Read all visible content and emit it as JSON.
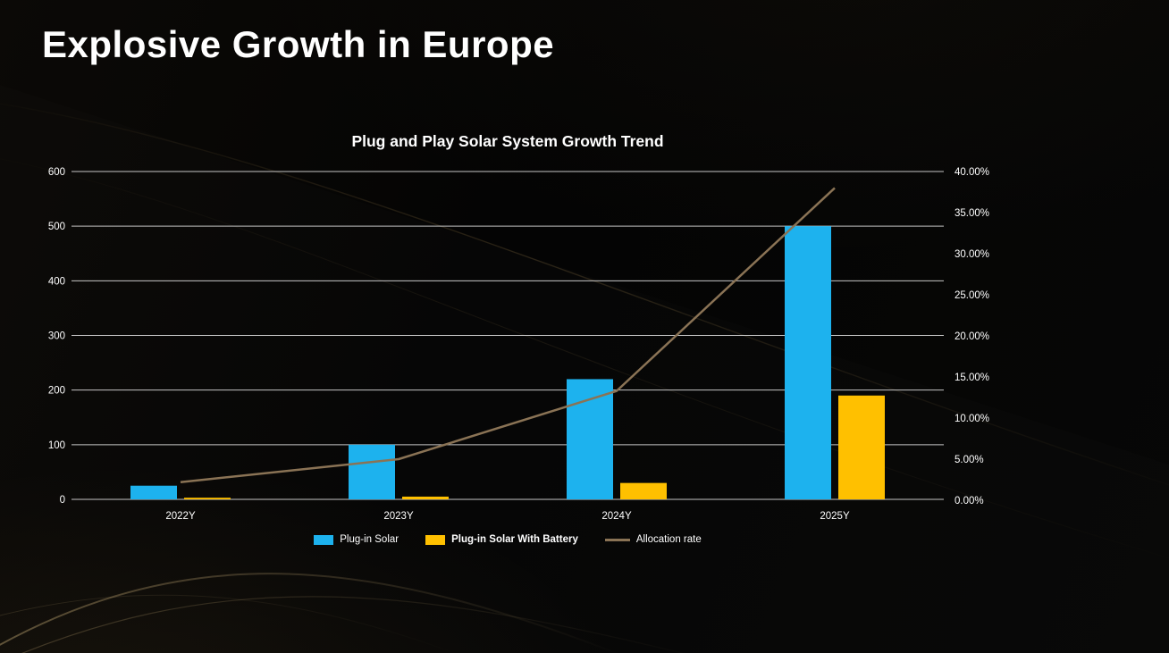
{
  "slide": {
    "title": "Explosive Growth in Europe"
  },
  "chart_data": {
    "type": "bar",
    "title": "Plug and Play Solar System Growth Trend",
    "categories": [
      "2022Y",
      "2023Y",
      "2024Y",
      "2025Y"
    ],
    "series": [
      {
        "name": "Plug-in Solar",
        "type": "bar",
        "axis": "left",
        "color": "#1db2ee",
        "values": [
          25,
          100,
          220,
          500
        ]
      },
      {
        "name": "Plug-in Solar With Battery",
        "type": "bar",
        "axis": "left",
        "color": "#ffc000",
        "values": [
          3,
          5,
          30,
          190
        ]
      },
      {
        "name": "Allocation rate",
        "type": "line",
        "axis": "right",
        "color": "#8a7355",
        "values": [
          2.2,
          5.0,
          13.3,
          38.0
        ]
      }
    ],
    "left_axis": {
      "min": 0,
      "max": 600,
      "step": 100,
      "ticks": [
        "0",
        "100",
        "200",
        "300",
        "400",
        "500",
        "600"
      ]
    },
    "right_axis": {
      "min": 0,
      "max": 40,
      "step": 5,
      "ticks": [
        "0.00%",
        "5.00%",
        "10.00%",
        "15.00%",
        "20.00%",
        "25.00%",
        "30.00%",
        "35.00%",
        "40.00%"
      ]
    },
    "grid": true,
    "legend_position": "bottom",
    "colors": {
      "gridline": "#e8e8e8",
      "text": "#ffffff",
      "background": "#040404",
      "decor_gold": "#a8884a"
    }
  }
}
